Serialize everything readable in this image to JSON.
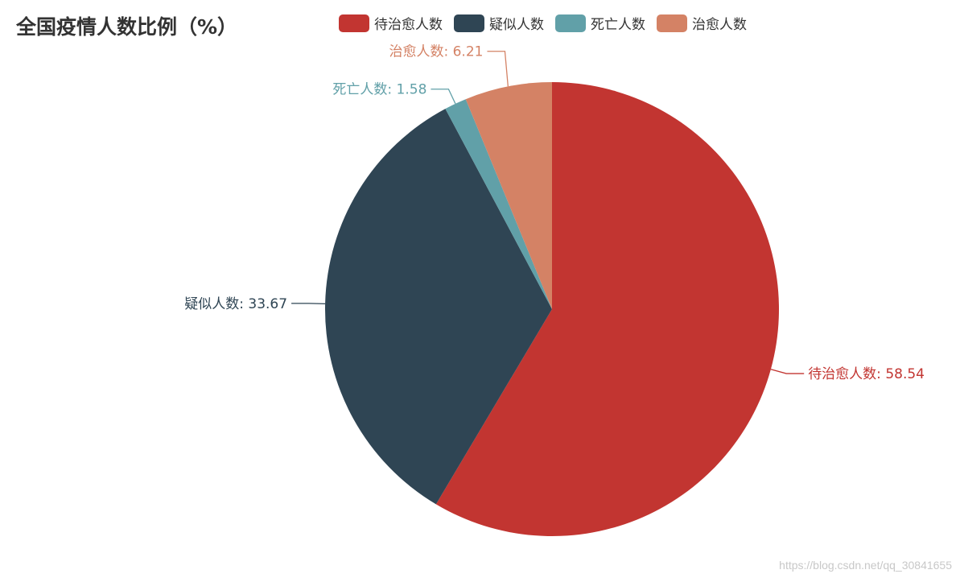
{
  "chart_data": {
    "type": "pie",
    "title": "全国疫情人数比例（%）",
    "categories": [
      "待治愈人数",
      "疑似人数",
      "死亡人数",
      "治愈人数"
    ],
    "values": [
      58.54,
      33.67,
      1.58,
      6.21
    ],
    "colors": [
      "#c23531",
      "#2f4554",
      "#61a0a8",
      "#d48265"
    ],
    "legend_position": "top-center"
  },
  "watermark": "https://blog.csdn.net/qq_30841655"
}
